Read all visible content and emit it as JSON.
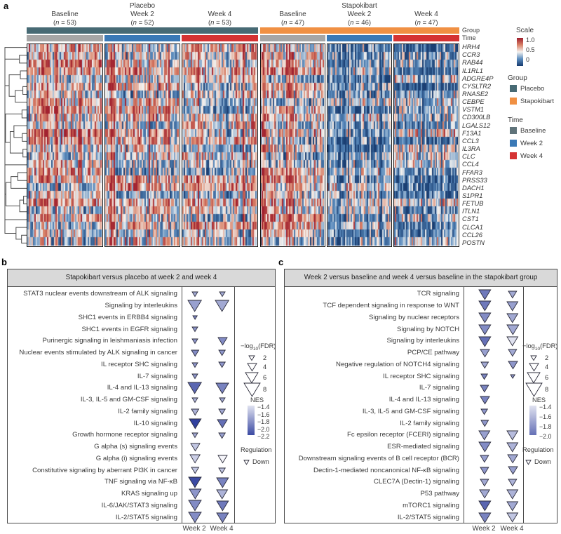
{
  "figure": {
    "panel_labels": {
      "a": "a",
      "b": "b",
      "c": "c"
    }
  },
  "chart_data": [
    {
      "id": "panel_a",
      "type": "heatmap",
      "groups": [
        {
          "name": "Placebo",
          "color": "#476a74",
          "blocks": [
            {
              "time": "Baseline",
              "n": 53
            },
            {
              "time": "Week 2",
              "n": 52
            },
            {
              "time": "Week 4",
              "n": 53
            }
          ]
        },
        {
          "name": "Stapokibart",
          "color": "#f09043",
          "blocks": [
            {
              "time": "Baseline",
              "n": 47
            },
            {
              "time": "Week 2",
              "n": 46
            },
            {
              "time": "Week 4",
              "n": 47
            }
          ]
        }
      ],
      "bar_labels": {
        "group": "Group",
        "time": "Time"
      },
      "time_bar_colors": {
        "Baseline": "#a6a6a6",
        "Week 2": "#3a79b6",
        "Week 4": "#d53333"
      },
      "genes": [
        "HRH4",
        "CCR3",
        "RAB44",
        "IL1RL1",
        "ADGRE4P",
        "CYSLTR2",
        "RNASE2",
        "CEBPE",
        "VSTM1",
        "CD300LB",
        "LGALS12",
        "F13A1",
        "CCL3",
        "IL3RA",
        "CLC",
        "CCL4",
        "FFAR3",
        "PRSS33",
        "DACH1",
        "S1PR1",
        "FETUB",
        "ITLN1",
        "CST1",
        "CLCA1",
        "CCL26",
        "POSTN"
      ],
      "block_mean_scaled_expression": [
        0.55,
        0.5,
        0.49,
        0.56,
        0.33,
        0.34
      ],
      "legend": {
        "scale": {
          "title": "Scale",
          "ticks": [
            "1.0",
            "0.5",
            "0"
          ],
          "colors_top_to_bottom": [
            "#9e1c2c",
            "#d98268",
            "#f4f2ef",
            "#5b8cbe",
            "#163a6e"
          ]
        },
        "group": {
          "title": "Group",
          "items": [
            {
              "label": "Placebo",
              "color": "#476a74"
            },
            {
              "label": "Stapokibart",
              "color": "#f09043"
            }
          ]
        },
        "time": {
          "title": "Time",
          "items": [
            {
              "label": "Baseline",
              "color": "#5f737a"
            },
            {
              "label": "Week 2",
              "color": "#3a79b6"
            },
            {
              "label": "Week 4",
              "color": "#d53333"
            }
          ]
        }
      }
    },
    {
      "id": "panel_b",
      "type": "dotplot-triangle",
      "title": "Stapokibart versus placebo at week 2 and week 4",
      "columns": [
        "Week 2",
        "Week 4"
      ],
      "rows": [
        {
          "pathway": "STAT3 nuclear events downstream of ALK signaling",
          "week2": {
            "fdr": 2,
            "nes": -1.7
          },
          "week4": {
            "fdr": 2,
            "nes": -1.7
          }
        },
        {
          "pathway": "Signaling by interleukins",
          "week2": {
            "fdr": 6.5,
            "nes": -1.75
          },
          "week4": {
            "fdr": 6.5,
            "nes": -1.7
          }
        },
        {
          "pathway": "SHC1 events in ERBB4 signaling",
          "week2": {
            "fdr": 1.3,
            "nes": -1.9
          },
          "week4": null
        },
        {
          "pathway": "SHC1 events in EGFR signaling",
          "week2": {
            "fdr": 2,
            "nes": -1.8
          },
          "week4": null
        },
        {
          "pathway": "Purinergic signaling in leishmaniasis infection",
          "week2": {
            "fdr": 2,
            "nes": -1.8
          },
          "week4": {
            "fdr": 4,
            "nes": -1.85
          }
        },
        {
          "pathway": "Nuclear events stimulated by ALK signaling in cancer",
          "week2": {
            "fdr": 3,
            "nes": -1.85
          },
          "week4": {
            "fdr": 2.5,
            "nes": -1.8
          }
        },
        {
          "pathway": "IL receptor SHC signaling",
          "week2": {
            "fdr": 2,
            "nes": -1.8
          },
          "week4": {
            "fdr": 2.5,
            "nes": -1.8
          }
        },
        {
          "pathway": "IL-7 signaling",
          "week2": {
            "fdr": 2,
            "nes": -1.8
          },
          "week4": null
        },
        {
          "pathway": "IL-4 and IL-13 signaling",
          "week2": {
            "fdr": 6.5,
            "nes": -2.05
          },
          "week4": {
            "fdr": 6,
            "nes": -1.9
          }
        },
        {
          "pathway": "IL-3, IL-5 and GM-CSF signaling",
          "week2": {
            "fdr": 2,
            "nes": -1.65
          },
          "week4": {
            "fdr": 2,
            "nes": -1.7
          }
        },
        {
          "pathway": "IL-2 family signaling",
          "week2": {
            "fdr": 3,
            "nes": -1.65
          },
          "week4": {
            "fdr": 2.5,
            "nes": -1.7
          }
        },
        {
          "pathway": "IL-10 signaling",
          "week2": {
            "fdr": 5.5,
            "nes": -2.25
          },
          "week4": {
            "fdr": 4.5,
            "nes": -2.0
          }
        },
        {
          "pathway": "Growth hormone receptor signaling",
          "week2": {
            "fdr": 2,
            "nes": -1.7
          },
          "week4": {
            "fdr": 2.5,
            "nes": -1.75
          }
        },
        {
          "pathway": "G alpha (s) signaling events",
          "week2": {
            "fdr": 4,
            "nes": -1.55
          },
          "week4": null
        },
        {
          "pathway": "G alpha (i) signaling events",
          "week2": {
            "fdr": 4.5,
            "nes": -1.5
          },
          "week4": {
            "fdr": 4,
            "nes": -1.3
          }
        },
        {
          "pathway": "Constitutive signaling by aberrant PI3K in cancer",
          "week2": {
            "fdr": 3,
            "nes": -1.55
          },
          "week4": {
            "fdr": 2.5,
            "nes": -1.55
          }
        },
        {
          "pathway": "TNF signaling via NF-κB",
          "week2": {
            "fdr": 6,
            "nes": -2.2
          },
          "week4": {
            "fdr": 5.5,
            "nes": -1.9
          }
        },
        {
          "pathway": "KRAS signaling up",
          "week2": {
            "fdr": 5.5,
            "nes": -1.8
          },
          "week4": {
            "fdr": 5,
            "nes": -1.65
          }
        },
        {
          "pathway": "IL-6/JAK/STAT3 signaling",
          "week2": {
            "fdr": 6,
            "nes": -1.85
          },
          "week4": {
            "fdr": 5.5,
            "nes": -1.95
          }
        },
        {
          "pathway": "IL-2/STAT5 signaling",
          "week2": {
            "fdr": 6,
            "nes": -1.85
          },
          "week4": {
            "fdr": 5.5,
            "nes": -1.9
          }
        }
      ],
      "legend": {
        "fdr": {
          "prefix": "−log",
          "sub": "10",
          "suffix": "(FDR)",
          "sizes": [
            2,
            4,
            6,
            8
          ]
        },
        "nes_title": "NES",
        "nes_ticks": [
          "−1.4",
          "−1.6",
          "−1.8",
          "−2.0",
          "−2.2"
        ],
        "nes_domain": [
          -1.4,
          -2.2
        ],
        "regulation": {
          "title": "Regulation",
          "item": "Down"
        }
      }
    },
    {
      "id": "panel_c",
      "type": "dotplot-triangle",
      "title": "Week 2 versus baseline and week 4 versus baseline in the stapokibart group",
      "columns": [
        "Week 2",
        "Week 4"
      ],
      "rows": [
        {
          "pathway": "TCR signaling",
          "week2": {
            "fdr": 5.5,
            "nes": -1.95
          },
          "week4": {
            "fdr": 3.5,
            "nes": -1.7
          }
        },
        {
          "pathway": "TCF dependent signaling in response to WNT",
          "week2": {
            "fdr": 5.5,
            "nes": -1.95
          },
          "week4": {
            "fdr": 5,
            "nes": -1.75
          }
        },
        {
          "pathway": "Signaling by nuclear receptors",
          "week2": {
            "fdr": 5.5,
            "nes": -1.85
          },
          "week4": {
            "fdr": 5,
            "nes": -1.7
          }
        },
        {
          "pathway": "Signaling by NOTCH",
          "week2": {
            "fdr": 5.5,
            "nes": -1.85
          },
          "week4": {
            "fdr": 5.5,
            "nes": -1.7
          }
        },
        {
          "pathway": "Signaling by interleukins",
          "week2": {
            "fdr": 5.5,
            "nes": -2.0
          },
          "week4": {
            "fdr": 5,
            "nes": -1.4
          }
        },
        {
          "pathway": "PCP/CE pathway",
          "week2": {
            "fdr": 4,
            "nes": -1.75
          },
          "week4": {
            "fdr": 3.5,
            "nes": -1.7
          }
        },
        {
          "pathway": "Negative regulation of NOTCH4 signaling",
          "week2": {
            "fdr": 3,
            "nes": -1.7
          },
          "week4": {
            "fdr": 4,
            "nes": -1.8
          }
        },
        {
          "pathway": "IL receptor SHC signaling",
          "week2": {
            "fdr": 2.5,
            "nes": -1.9
          },
          "week4": {
            "fdr": 1.3,
            "nes": -1.8
          }
        },
        {
          "pathway": "IL-7 signaling",
          "week2": {
            "fdr": 3.5,
            "nes": -1.9
          },
          "week4": null
        },
        {
          "pathway": "IL-4 and IL-13 signaling",
          "week2": {
            "fdr": 4,
            "nes": -1.9
          },
          "week4": null
        },
        {
          "pathway": "IL-3, IL-5 and GM-CSF signaling",
          "week2": {
            "fdr": 2.5,
            "nes": -1.8
          },
          "week4": null
        },
        {
          "pathway": "IL-2 family signaling",
          "week2": {
            "fdr": 3,
            "nes": -1.8
          },
          "week4": null
        },
        {
          "pathway": "Fc epsilon receptor (FCERI) signaling",
          "week2": {
            "fdr": 5,
            "nes": -1.75
          },
          "week4": {
            "fdr": 5,
            "nes": -1.6
          }
        },
        {
          "pathway": "ESR-mediated signaling",
          "week2": {
            "fdr": 5.5,
            "nes": -1.85
          },
          "week4": {
            "fdr": 5,
            "nes": -1.65
          }
        },
        {
          "pathway": "Downstream signaling events of B cell receptor (BCR)",
          "week2": {
            "fdr": 3.5,
            "nes": -1.75
          },
          "week4": {
            "fdr": 4.5,
            "nes": -1.7
          }
        },
        {
          "pathway": "Dectin-1-mediated noncanonical NF-κB signaling",
          "week2": {
            "fdr": 3.5,
            "nes": -1.8
          },
          "week4": {
            "fdr": 4,
            "nes": -1.75
          }
        },
        {
          "pathway": "CLEC7A (Dectin-1) signaling",
          "week2": {
            "fdr": 3.5,
            "nes": -1.7
          },
          "week4": {
            "fdr": 3.5,
            "nes": -1.65
          }
        },
        {
          "pathway": "P53 pathway",
          "week2": {
            "fdr": 4.5,
            "nes": -1.7
          },
          "week4": {
            "fdr": 5,
            "nes": -1.65
          }
        },
        {
          "pathway": "mTORC1 signaling",
          "week2": {
            "fdr": 5.5,
            "nes": -2.05
          },
          "week4": {
            "fdr": 5,
            "nes": -1.7
          }
        },
        {
          "pathway": "IL-2/STAT5 signaling",
          "week2": {
            "fdr": 5.5,
            "nes": -1.9
          },
          "week4": {
            "fdr": 5,
            "nes": -1.55
          }
        }
      ],
      "legend": {
        "fdr": {
          "prefix": "−log",
          "sub": "10",
          "suffix": "(FDR)",
          "sizes": [
            2,
            4,
            6,
            8
          ]
        },
        "nes_title": "NES",
        "nes_ticks": [
          "−1.4",
          "−1.6",
          "−1.8",
          "−2.0"
        ],
        "nes_domain": [
          -1.4,
          -2.0
        ],
        "regulation": {
          "title": "Regulation",
          "item": "Down"
        }
      }
    }
  ]
}
